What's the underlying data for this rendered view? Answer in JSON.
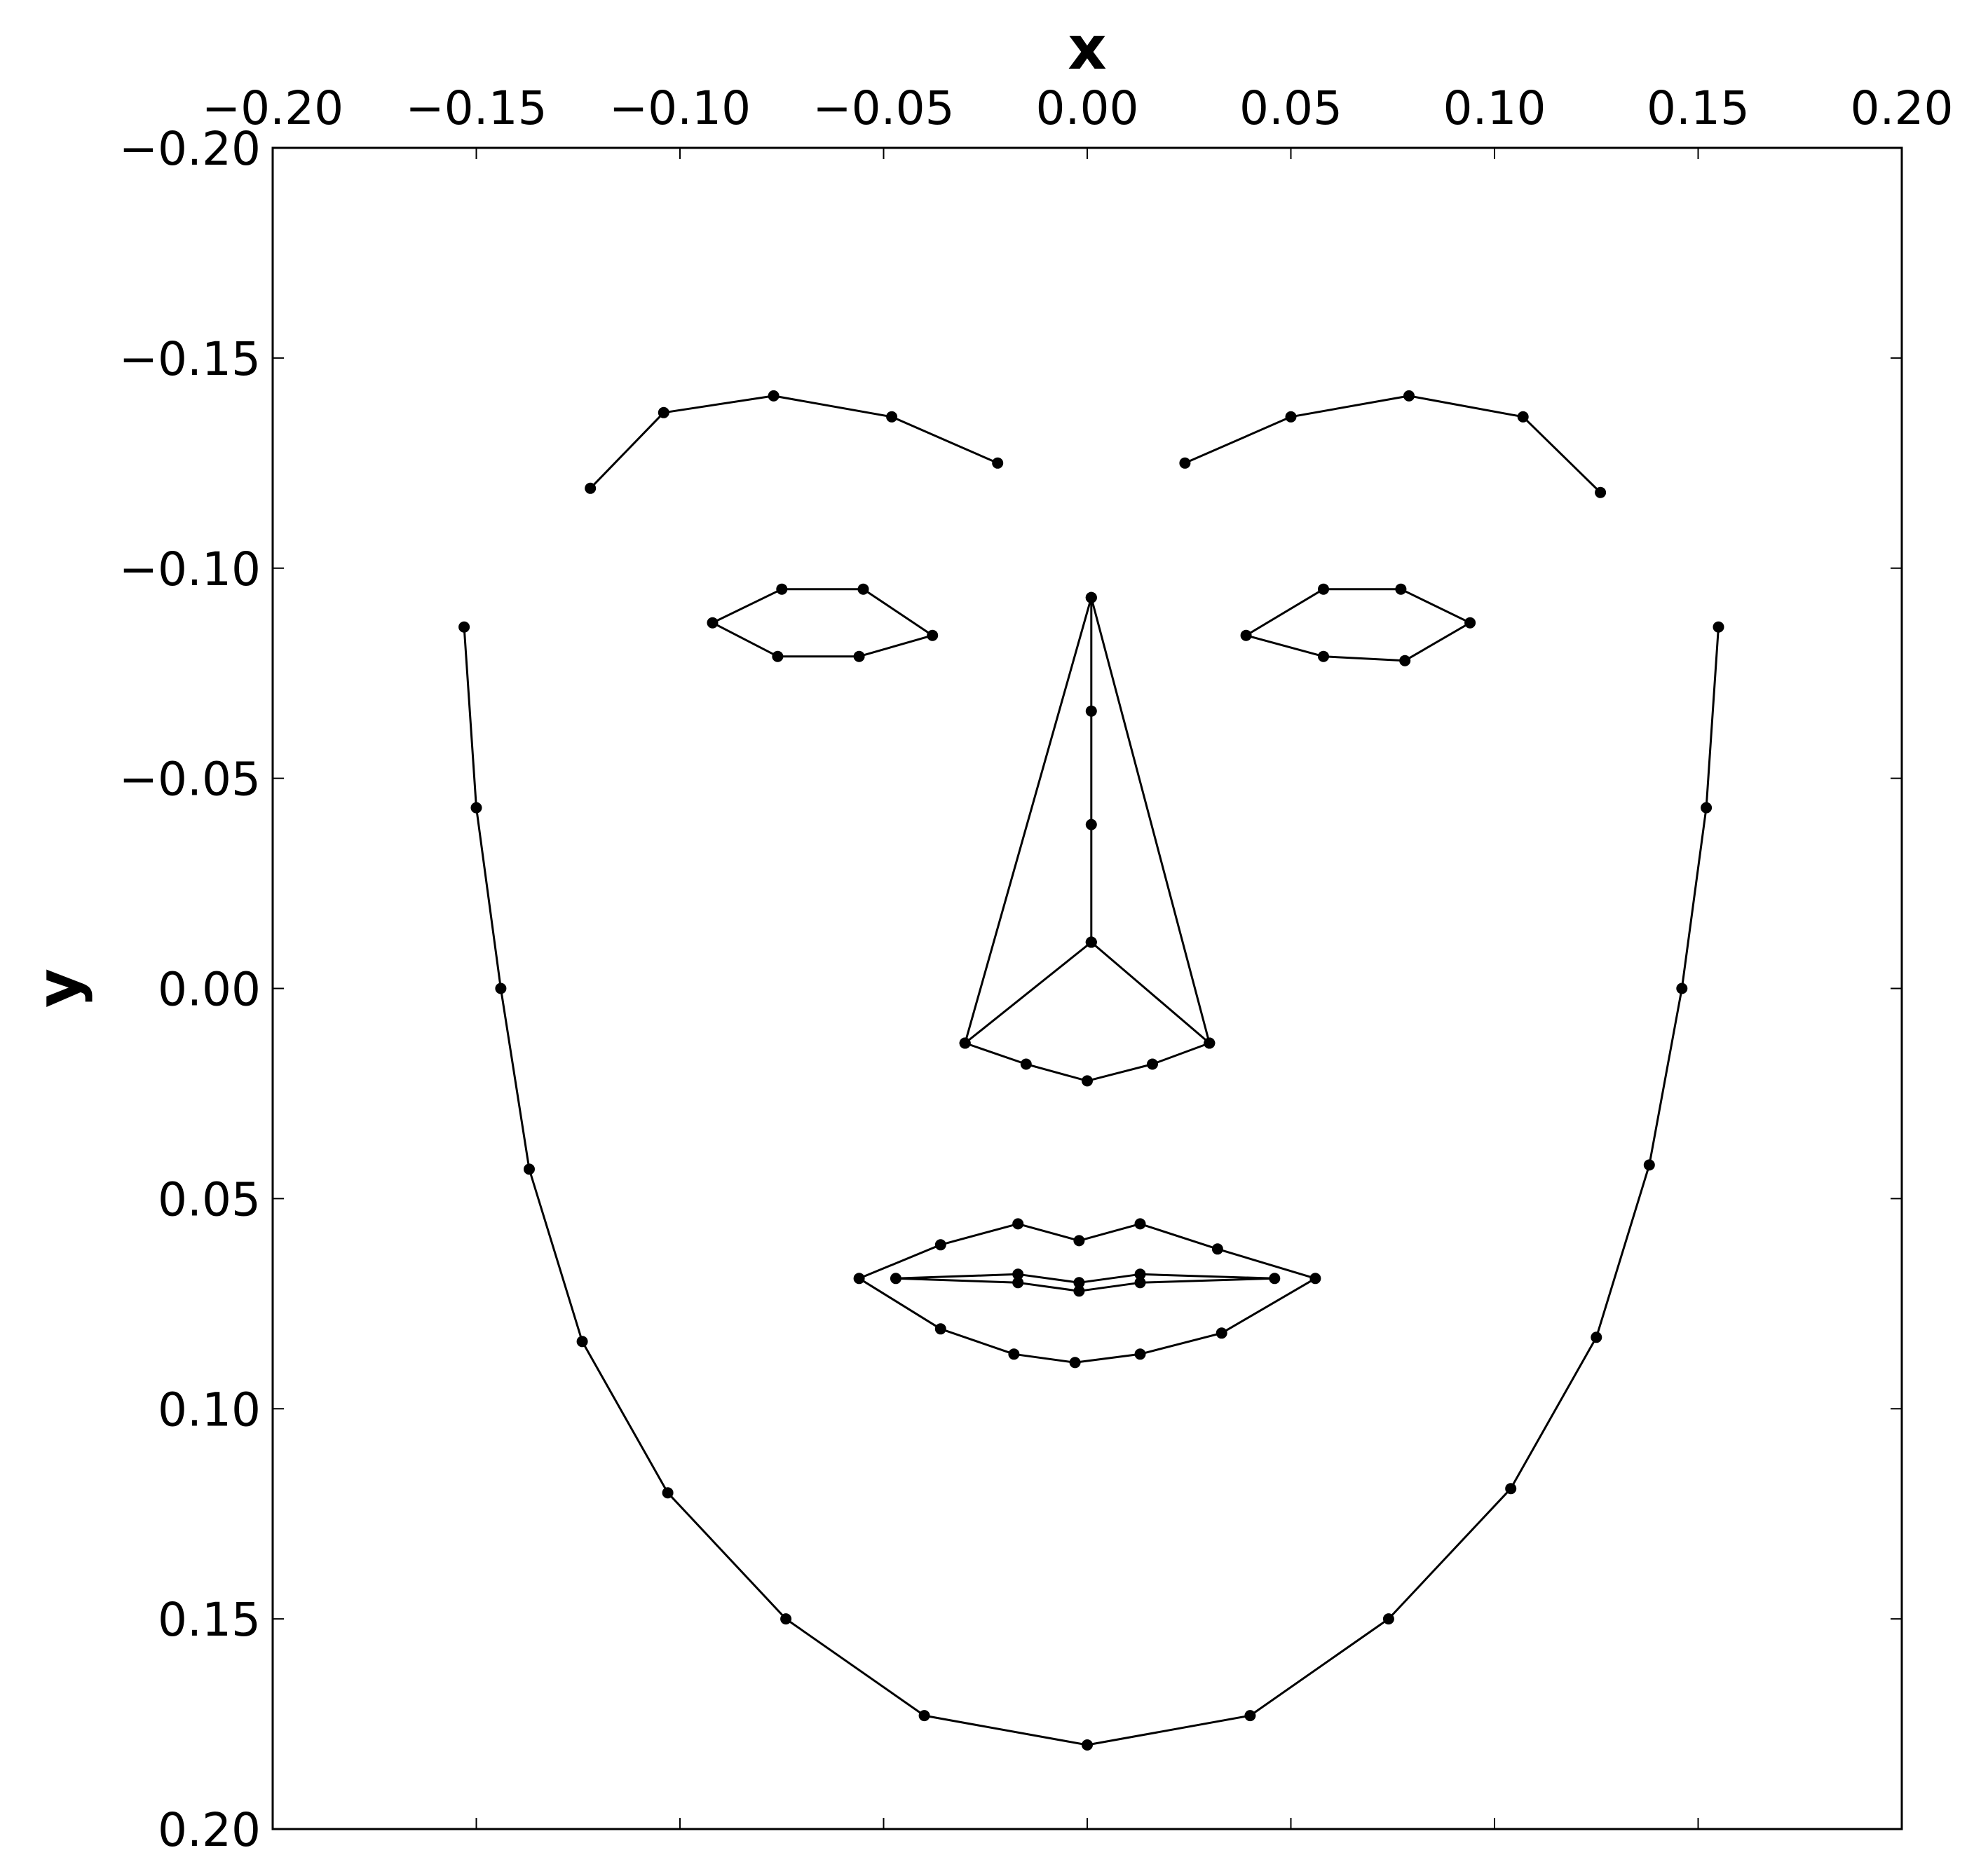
{
  "chart_data": {
    "type": "scatter",
    "xlabel": "x",
    "ylabel": "y",
    "xlim": [
      -0.2,
      0.2
    ],
    "ylim": [
      -0.2,
      0.2
    ],
    "y_inverted": true,
    "x_axis_position": "top",
    "grid": false,
    "legend": "none",
    "marker_color": "#000000",
    "line_color": "#000000",
    "x_ticks": [
      -0.2,
      -0.15,
      -0.1,
      -0.05,
      0.0,
      0.05,
      0.1,
      0.15,
      0.2
    ],
    "y_ticks": [
      -0.2,
      -0.15,
      -0.1,
      -0.05,
      0.0,
      0.05,
      0.1,
      0.15,
      0.2
    ],
    "x_tick_labels": [
      "−0.20",
      "−0.15",
      "−0.10",
      "−0.05",
      "0.00",
      "0.05",
      "0.10",
      "0.15",
      "0.20"
    ],
    "y_tick_labels": [
      "−0.20",
      "−0.15",
      "−0.10",
      "−0.05",
      "0.00",
      "0.05",
      "0.10",
      "0.15",
      "0.20"
    ],
    "series": [
      {
        "points": [
          [
            -0.153,
            -0.086
          ],
          [
            -0.15,
            -0.043
          ],
          [
            -0.144,
            0.0
          ],
          [
            -0.137,
            0.043
          ],
          [
            -0.124,
            0.084
          ],
          [
            -0.103,
            0.12
          ],
          [
            -0.074,
            0.15
          ],
          [
            -0.04,
            0.173
          ],
          [
            0.0,
            0.18
          ],
          [
            0.04,
            0.173
          ],
          [
            0.074,
            0.15
          ],
          [
            0.104,
            0.119
          ],
          [
            0.125,
            0.083
          ],
          [
            0.138,
            0.042
          ],
          [
            0.146,
            0.0
          ],
          [
            0.152,
            -0.043
          ],
          [
            0.155,
            -0.086
          ]
        ],
        "closed": false
      },
      {
        "points": [
          [
            -0.122,
            -0.119
          ],
          [
            -0.104,
            -0.137
          ],
          [
            -0.077,
            -0.141
          ],
          [
            -0.048,
            -0.136
          ],
          [
            -0.022,
            -0.125
          ]
        ],
        "closed": false
      },
      {
        "points": [
          [
            0.024,
            -0.125
          ],
          [
            0.05,
            -0.136
          ],
          [
            0.079,
            -0.141
          ],
          [
            0.107,
            -0.136
          ],
          [
            0.126,
            -0.118
          ]
        ],
        "closed": false
      },
      {
        "points": [
          [
            0.001,
            -0.093
          ],
          [
            0.001,
            -0.066
          ],
          [
            0.001,
            -0.039
          ],
          [
            0.001,
            -0.011
          ]
        ],
        "closed": false
      },
      {
        "points": [
          [
            0.001,
            -0.093
          ],
          [
            -0.03,
            0.013
          ]
        ],
        "closed": false
      },
      {
        "points": [
          [
            0.001,
            -0.093
          ],
          [
            0.03,
            0.013
          ]
        ],
        "closed": false
      },
      {
        "points": [
          [
            0.001,
            -0.011
          ],
          [
            -0.03,
            0.013
          ]
        ],
        "closed": false
      },
      {
        "points": [
          [
            0.001,
            -0.011
          ],
          [
            0.03,
            0.013
          ]
        ],
        "closed": false
      },
      {
        "points": [
          [
            -0.03,
            0.013
          ],
          [
            -0.015,
            0.018
          ],
          [
            0.0,
            0.022
          ],
          [
            0.016,
            0.018
          ],
          [
            0.03,
            0.013
          ]
        ],
        "closed": false
      },
      {
        "points": [
          [
            -0.092,
            -0.087
          ],
          [
            -0.075,
            -0.095
          ],
          [
            -0.055,
            -0.095
          ],
          [
            -0.038,
            -0.084
          ],
          [
            -0.056,
            -0.079
          ],
          [
            -0.076,
            -0.079
          ]
        ],
        "closed": true
      },
      {
        "points": [
          [
            0.039,
            -0.084
          ],
          [
            0.058,
            -0.095
          ],
          [
            0.077,
            -0.095
          ],
          [
            0.094,
            -0.087
          ],
          [
            0.078,
            -0.078
          ],
          [
            0.058,
            -0.079
          ]
        ],
        "closed": true
      },
      {
        "points": [
          [
            -0.056,
            0.069
          ],
          [
            -0.036,
            0.061
          ],
          [
            -0.017,
            0.056
          ],
          [
            -0.002,
            0.06
          ],
          [
            0.013,
            0.056
          ],
          [
            0.032,
            0.062
          ],
          [
            0.056,
            0.069
          ],
          [
            0.033,
            0.082
          ],
          [
            0.013,
            0.087
          ],
          [
            -0.003,
            0.089
          ],
          [
            -0.018,
            0.087
          ],
          [
            -0.036,
            0.081
          ]
        ],
        "closed": true
      },
      {
        "points": [
          [
            -0.047,
            0.069
          ],
          [
            -0.017,
            0.068
          ],
          [
            -0.002,
            0.07
          ],
          [
            0.013,
            0.068
          ],
          [
            0.046,
            0.069
          ],
          [
            0.013,
            0.07
          ],
          [
            -0.002,
            0.072
          ],
          [
            -0.017,
            0.07
          ]
        ],
        "closed": true
      }
    ]
  }
}
